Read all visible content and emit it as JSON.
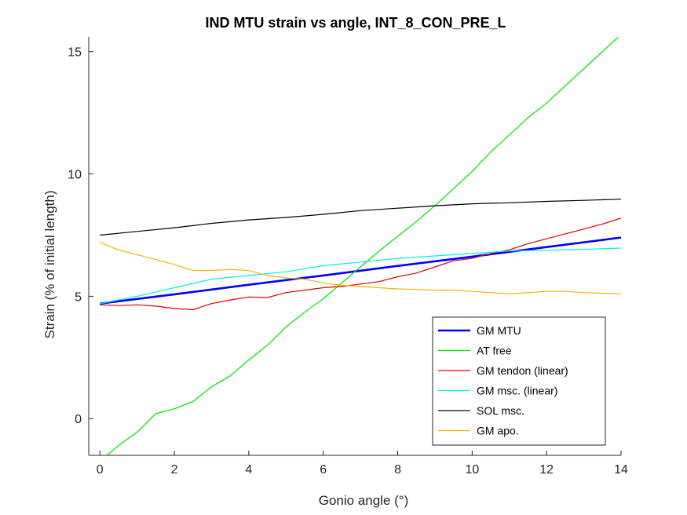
{
  "chart_data": {
    "type": "line",
    "title": "IND MTU strain vs angle, INT_8_CON_PRE_L",
    "xlabel": "Gonio angle (°)",
    "ylabel": "Strain (% of initial length)",
    "xlim": [
      -0.3,
      14
    ],
    "ylim": [
      -1.5,
      15.6
    ],
    "xticks": [
      0,
      2,
      4,
      6,
      8,
      10,
      12,
      14
    ],
    "yticks": [
      0,
      5,
      10,
      15
    ],
    "grid": false,
    "legend_position": "bottom-right",
    "series": [
      {
        "name": "GM MTU",
        "color": "#0000ff",
        "width": 2.6,
        "x": [
          0,
          2,
          4,
          6,
          8,
          10,
          12,
          14
        ],
        "y": [
          4.7,
          5.08,
          5.47,
          5.85,
          6.24,
          6.62,
          7.01,
          7.4
        ]
      },
      {
        "name": "AT free",
        "color": "#00e000",
        "width": 1.2,
        "x": [
          0,
          0.5,
          1,
          1.5,
          2,
          2.5,
          3,
          3.5,
          4,
          4.5,
          5,
          5.5,
          6,
          6.5,
          7,
          7.5,
          8,
          8.5,
          9,
          9.5,
          10,
          10.5,
          11,
          11.5,
          12,
          12.5,
          13,
          13.5,
          14
        ],
        "y": [
          -1.75,
          -1.1,
          -0.55,
          0.2,
          0.4,
          0.7,
          1.3,
          1.75,
          2.4,
          3.0,
          3.75,
          4.35,
          4.9,
          5.55,
          6.2,
          6.85,
          7.45,
          8.05,
          8.7,
          9.4,
          10.1,
          10.9,
          11.6,
          12.3,
          12.9,
          13.6,
          14.3,
          15.0,
          15.7
        ]
      },
      {
        "name": "GM tendon (linear)",
        "color": "#dd0000",
        "width": 1.2,
        "x": [
          0,
          0.5,
          1,
          1.5,
          2,
          2.5,
          3,
          3.5,
          4,
          4.5,
          5,
          5.5,
          6,
          6.5,
          7,
          7.5,
          8,
          8.5,
          9,
          9.5,
          10,
          10.5,
          11,
          11.5,
          12,
          12.5,
          13,
          13.5,
          14
        ],
        "y": [
          4.65,
          4.62,
          4.65,
          4.6,
          4.5,
          4.45,
          4.7,
          4.85,
          4.97,
          4.95,
          5.15,
          5.25,
          5.35,
          5.4,
          5.5,
          5.6,
          5.8,
          5.95,
          6.2,
          6.45,
          6.55,
          6.75,
          6.9,
          7.15,
          7.35,
          7.55,
          7.75,
          7.95,
          8.2
        ]
      },
      {
        "name": "GM msc. (linear)",
        "color": "#00eeee",
        "width": 1.2,
        "x": [
          0,
          1,
          2,
          3,
          4,
          5,
          6,
          7,
          8,
          9,
          10,
          11,
          12,
          13,
          14
        ],
        "y": [
          4.7,
          5.0,
          5.35,
          5.7,
          5.85,
          6.0,
          6.25,
          6.4,
          6.55,
          6.65,
          6.75,
          6.85,
          6.88,
          6.92,
          6.97
        ]
      },
      {
        "name": "SOL msc.",
        "color": "#000000",
        "width": 1.2,
        "x": [
          0,
          1,
          2,
          3,
          4,
          5,
          6,
          7,
          8,
          9,
          10,
          11,
          12,
          13,
          14
        ],
        "y": [
          7.5,
          7.65,
          7.8,
          7.98,
          8.12,
          8.22,
          8.35,
          8.5,
          8.6,
          8.7,
          8.78,
          8.82,
          8.88,
          8.92,
          8.97
        ]
      },
      {
        "name": "GM apo.",
        "color": "#f0b400",
        "width": 1.2,
        "x": [
          0,
          0.5,
          1,
          1.5,
          2,
          2.5,
          3,
          3.5,
          4,
          4.5,
          5,
          5.5,
          6,
          6.5,
          7,
          7.5,
          8,
          8.5,
          9,
          9.5,
          10,
          10.5,
          11,
          11.5,
          12,
          12.5,
          13,
          13.5,
          14
        ],
        "y": [
          7.2,
          6.9,
          6.7,
          6.5,
          6.3,
          6.05,
          6.05,
          6.1,
          6.05,
          5.85,
          5.75,
          5.7,
          5.55,
          5.45,
          5.4,
          5.35,
          5.3,
          5.28,
          5.25,
          5.25,
          5.2,
          5.15,
          5.1,
          5.15,
          5.2,
          5.2,
          5.15,
          5.12,
          5.1
        ]
      }
    ]
  }
}
